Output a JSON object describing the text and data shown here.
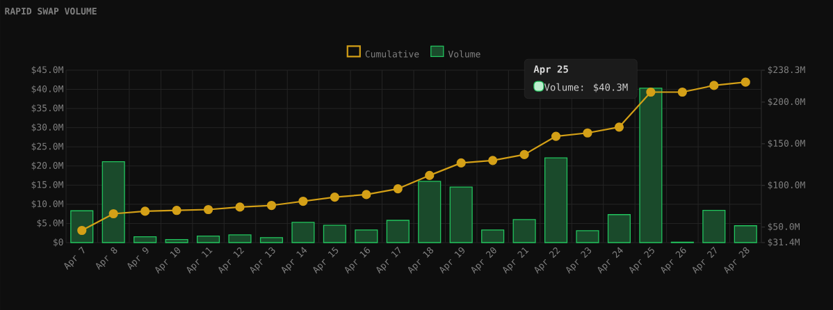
{
  "chart_data": {
    "type": "bar",
    "title": "RAPID SWAP VOLUME",
    "categories": [
      "Apr 7",
      "Apr 8",
      "Apr 9",
      "Apr 10",
      "Apr 11",
      "Apr 12",
      "Apr 13",
      "Apr 14",
      "Apr 15",
      "Apr 16",
      "Apr 17",
      "Apr 18",
      "Apr 19",
      "Apr 20",
      "Apr 21",
      "Apr 22",
      "Apr 23",
      "Apr 24",
      "Apr 25",
      "Apr 26",
      "Apr 27",
      "Apr 28"
    ],
    "series": [
      {
        "name": "Cumulative",
        "type": "line",
        "axis": "y2",
        "color": "#d4a017",
        "values": [
          46,
          66,
          69,
          70,
          71,
          74,
          76,
          81,
          86,
          89,
          96,
          112,
          127,
          130,
          137,
          159,
          163,
          170,
          212,
          212,
          220,
          224
        ]
      },
      {
        "name": "Volume",
        "color": "#22c55e",
        "values": [
          8.3,
          21.1,
          1.5,
          0.8,
          1.7,
          2.0,
          1.3,
          5.3,
          4.5,
          3.3,
          5.8,
          16.0,
          14.5,
          3.3,
          6.0,
          22.1,
          3.1,
          7.3,
          40.3,
          0.1,
          8.4,
          4.4
        ]
      }
    ],
    "ylim": [
      0,
      45
    ],
    "yticks": [
      {
        "value": 0,
        "label": "$0"
      },
      {
        "value": 5,
        "label": "$5.0M"
      },
      {
        "value": 10,
        "label": "$10.0M"
      },
      {
        "value": 15,
        "label": "$15.0M"
      },
      {
        "value": 20,
        "label": "$20.0M"
      },
      {
        "value": 25,
        "label": "$25.0M"
      },
      {
        "value": 30,
        "label": "$30.0M"
      },
      {
        "value": 35,
        "label": "$35.0M"
      },
      {
        "value": 40,
        "label": "$40.0M"
      },
      {
        "value": 45,
        "label": "$45.0M"
      }
    ],
    "y2lim": [
      31.4,
      238.3
    ],
    "y2ticks": [
      {
        "value": 31.4,
        "label": "$31.4M"
      },
      {
        "value": 50,
        "label": "$50.0M"
      },
      {
        "value": 100,
        "label": "$100.0M"
      },
      {
        "value": 150,
        "label": "$150.0M"
      },
      {
        "value": 200,
        "label": "$200.0M"
      },
      {
        "value": 238.3,
        "label": "$238.3M"
      }
    ],
    "annotations": [
      "Apr 25",
      "Volume: $40.3M"
    ],
    "grid": true,
    "legend": "top",
    "marker": "circle"
  }
}
